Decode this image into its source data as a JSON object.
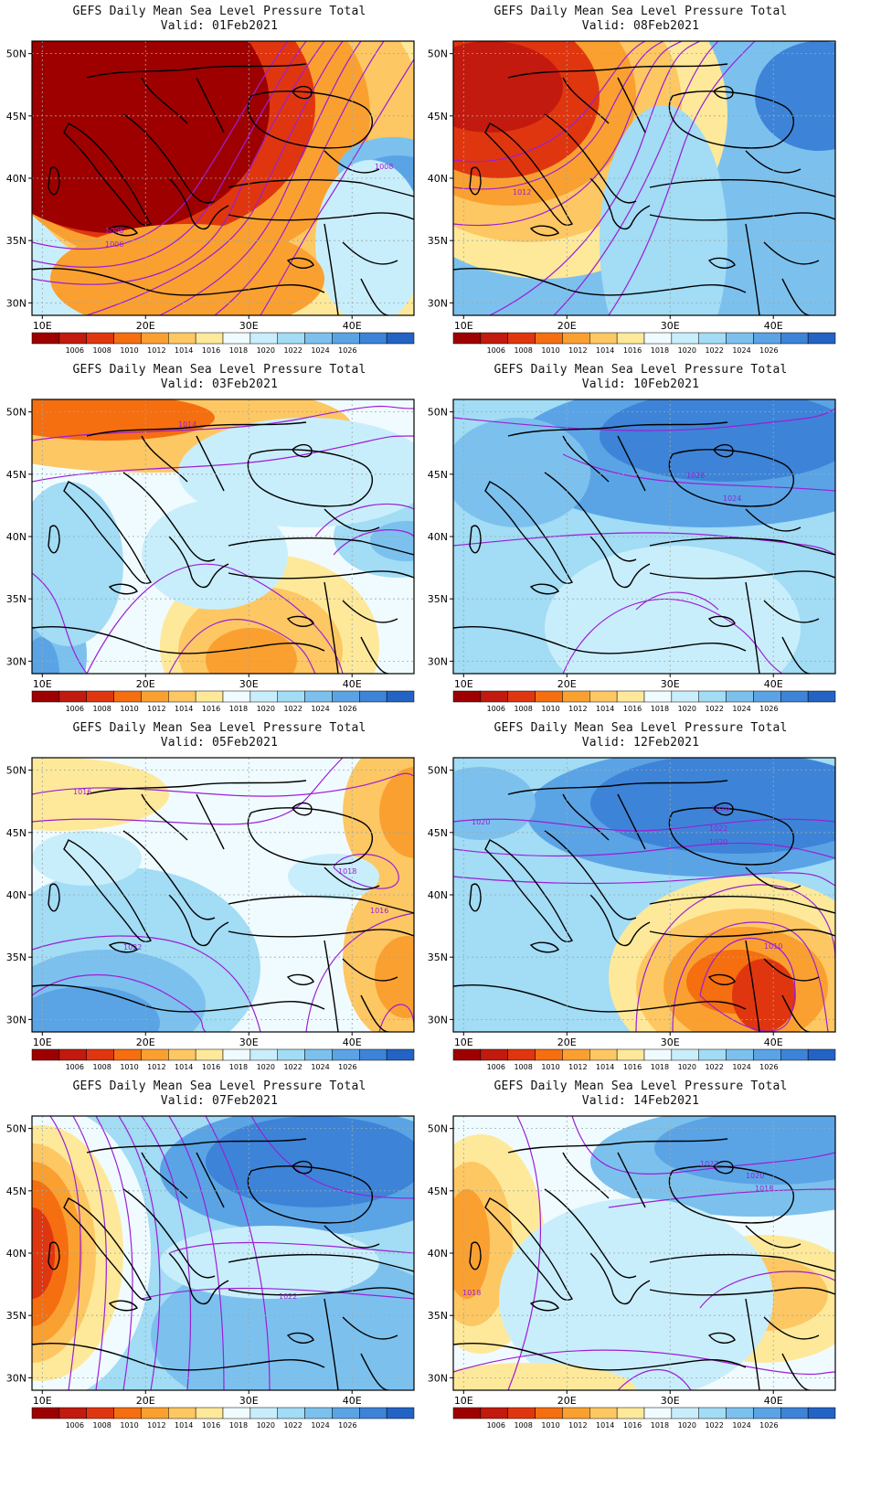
{
  "panels": [
    {
      "id": "p01",
      "title": "GEFS Daily Mean Sea Level Pressure Total",
      "valid": "Valid: 01Feb2021",
      "labels": [
        "1006",
        "1006",
        "1008"
      ],
      "variant": 0
    },
    {
      "id": "p08",
      "title": "GEFS Daily Mean Sea Level Pressure Total",
      "valid": "Valid: 08Feb2021",
      "labels": [
        "1012"
      ],
      "variant": 1
    },
    {
      "id": "p03",
      "title": "GEFS Daily Mean Sea Level Pressure Total",
      "valid": "Valid: 03Feb2021",
      "labels": [
        "1014"
      ],
      "variant": 2
    },
    {
      "id": "p10",
      "title": "GEFS Daily Mean Sea Level Pressure Total",
      "valid": "Valid: 10Feb2021",
      "labels": [
        "1026",
        "1024"
      ],
      "variant": 3
    },
    {
      "id": "p05",
      "title": "GEFS Daily Mean Sea Level Pressure Total",
      "valid": "Valid: 05Feb2021",
      "labels": [
        "1016",
        "1018",
        "1016",
        "1022"
      ],
      "variant": 4
    },
    {
      "id": "p12",
      "title": "GEFS Daily Mean Sea Level Pressure Total",
      "valid": "Valid: 12Feb2021",
      "labels": [
        "1020",
        "1026",
        "1022",
        "1020",
        "1010"
      ],
      "variant": 5
    },
    {
      "id": "p07",
      "title": "GEFS Daily Mean Sea Level Pressure Total",
      "valid": "Valid: 07Feb2021",
      "labels": [
        "1022"
      ],
      "variant": 6
    },
    {
      "id": "p14",
      "title": "GEFS Daily Mean Sea Level Pressure Total",
      "valid": "Valid: 14Feb2021",
      "labels": [
        "1022",
        "1020",
        "1018",
        "1018"
      ],
      "variant": 7
    }
  ],
  "axes": {
    "lat_labels": [
      "50N",
      "45N",
      "40N",
      "35N",
      "30N"
    ],
    "lon_labels": [
      "10E",
      "20E",
      "30E",
      "40E"
    ]
  },
  "colorbar": {
    "tick_labels": [
      "1006",
      "1008",
      "1010",
      "1012",
      "1014",
      "1016",
      "1018",
      "1020",
      "1022",
      "1024",
      "1026"
    ],
    "colors": [
      "#9e0000",
      "#c21a0e",
      "#e0360f",
      "#f56e10",
      "#faa030",
      "#fdc763",
      "#fee99a",
      "#f0fbff",
      "#c9eefb",
      "#a2dcf5",
      "#7cc1ee",
      "#5aa4e6",
      "#3d84d8",
      "#2363c4"
    ]
  },
  "contour_color": "#9b1fd6"
}
